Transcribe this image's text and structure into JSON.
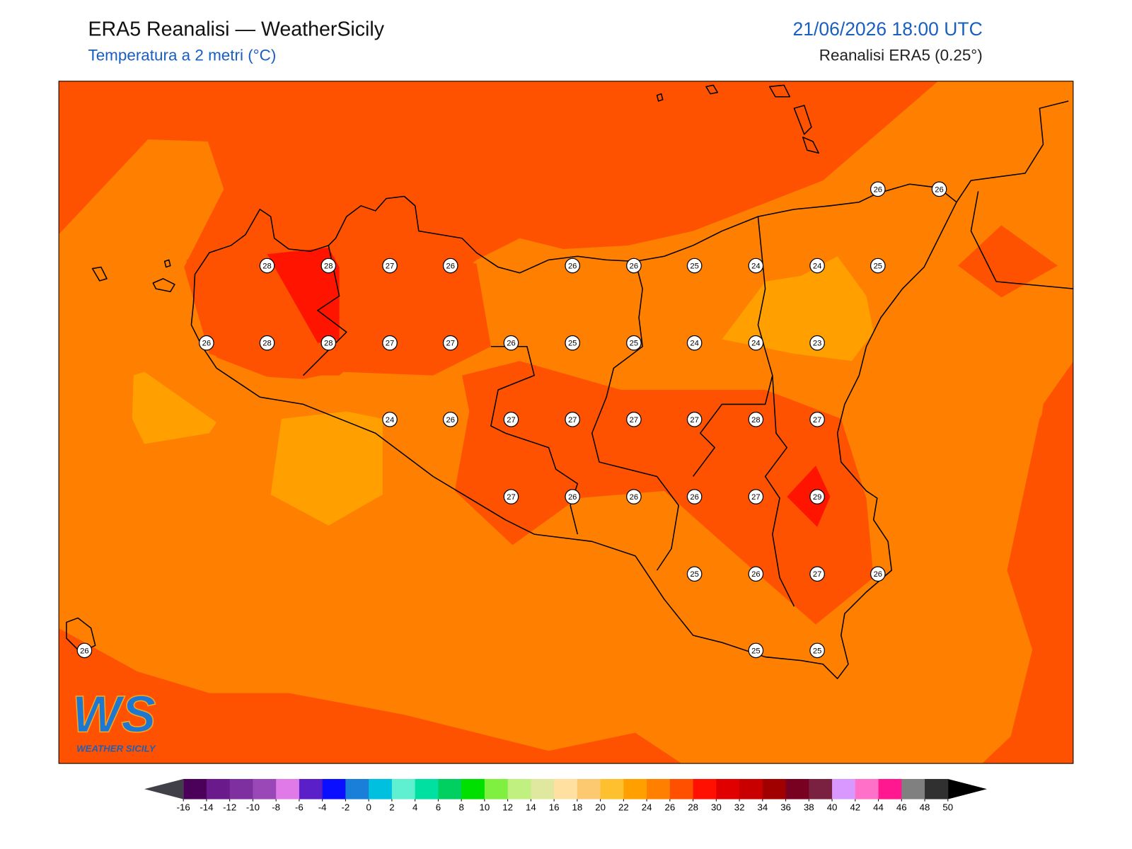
{
  "header": {
    "title": "ERA5 Reanalisi — WeatherSicily",
    "subtitle": "Temperatura a 2 metri (°C)",
    "valid_time": "21/06/2026 18:00 UTC",
    "source": "Reanalisi ERA5 (0.25°)"
  },
  "stations": [
    26,
    26,
    28,
    28,
    27,
    26,
    26,
    26,
    25,
    24,
    24,
    25,
    26,
    28,
    28,
    27,
    27,
    26,
    25,
    25,
    24,
    24,
    23,
    24,
    26,
    27,
    27,
    27,
    27,
    28,
    27,
    27,
    26,
    26,
    26,
    27,
    29,
    25,
    26,
    27,
    26,
    26,
    25,
    25
  ],
  "colorbar": {
    "ticks": [
      -16,
      -14,
      -12,
      -10,
      -8,
      -6,
      -4,
      -2,
      0,
      2,
      4,
      6,
      8,
      10,
      12,
      14,
      16,
      18,
      20,
      22,
      24,
      26,
      28,
      30,
      32,
      34,
      36,
      38,
      40,
      42,
      44,
      46,
      48,
      50
    ],
    "colors": [
      "#4b0059",
      "#6a1a8a",
      "#7e30a0",
      "#9a48b8",
      "#e07ae8",
      "#5a1fc8",
      "#0a10ff",
      "#1a7fd8",
      "#00c0e0",
      "#5ef0d0",
      "#00e0a0",
      "#00d060",
      "#00e000",
      "#80f040",
      "#c0f080",
      "#e0e8a0",
      "#ffe0a0",
      "#fcc870",
      "#ffc030",
      "#ffa000",
      "#ff8000",
      "#ff5000",
      "#ff1000",
      "#e00000",
      "#c80000",
      "#a00000",
      "#780020",
      "#7a2040",
      "#d898ff",
      "#ff70c8",
      "#ff1890",
      "#808080",
      "#303030"
    ],
    "under_color": "#404048",
    "over_color": "#000000"
  },
  "logo": {
    "letters": "WS",
    "tagline": "WEATHER SICILY"
  }
}
